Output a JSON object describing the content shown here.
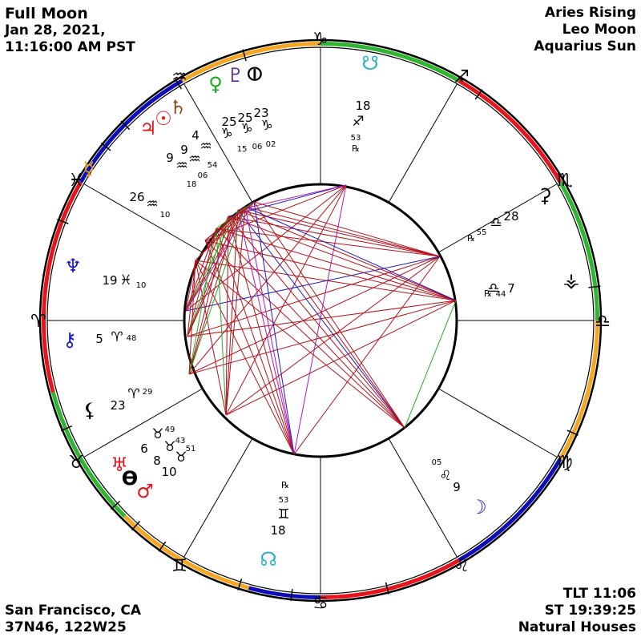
{
  "header": {
    "title": "Full Moon",
    "date": "Jan 28, 2021,",
    "time": "11:16:00 AM PST",
    "rising": "Aries Rising",
    "moon_sign": "Leo Moon",
    "sun_sign": "Aquarius Sun"
  },
  "footer": {
    "location": "San Francisco, CA",
    "coords": "37N46, 122W25",
    "tlt": "TLT 11:06",
    "st": "ST 19:39:25",
    "house_system": "Natural Houses"
  },
  "colors": {
    "fire": "#e8141b",
    "earth": "#2fb52f",
    "air": "#f5a623",
    "water": "#0d0db8",
    "aspect_red": "#b5121b",
    "aspect_blue": "#1a1ac8",
    "aspect_green": "#2aa82a",
    "aspect_magenta": "#b31ab3",
    "glyph_node": "#29b1c4",
    "glyph_venus": "#1aa81a",
    "glyph_purple": "#5a2d91",
    "glyph_saturn": "#8b4513",
    "glyph_red": "#e8141b",
    "glyph_mercury": "#e89c00",
    "glyph_blue": "#1a1ac8"
  },
  "zodiac_signs": [
    "♈",
    "♉",
    "♊",
    "♋",
    "♌",
    "♍",
    "♎",
    "♏",
    "♐",
    "♑",
    "♒",
    "♓"
  ],
  "planets": [
    {
      "name": "Venus",
      "glyph": "♀",
      "color_key": "glyph_venus",
      "degree": "25",
      "sign": "♑",
      "minute": "15"
    },
    {
      "name": "Pluto",
      "glyph": "♇",
      "color_key": "glyph_purple",
      "degree": "25",
      "sign": "♑",
      "minute": "06"
    },
    {
      "name": "Part of Fortune",
      "glyph": "⦶",
      "color_key": "glyph_black",
      "degree": "23",
      "sign": "♑",
      "minute": "02"
    },
    {
      "name": "Saturn",
      "glyph": "♄",
      "color_key": "glyph_saturn",
      "degree": "4",
      "sign": "♒",
      "minute": "54"
    },
    {
      "name": "Sun",
      "glyph": "☉",
      "color_key": "glyph_red",
      "degree": "9",
      "sign": "♒",
      "minute": "06"
    },
    {
      "name": "Jupiter",
      "glyph": "♃",
      "color_key": "glyph_red",
      "degree": "9",
      "sign": "♒",
      "minute": "18"
    },
    {
      "name": "Mercury",
      "glyph": "☿",
      "color_key": "glyph_mercury",
      "degree": "26",
      "sign": "♒",
      "minute": "10"
    },
    {
      "name": "Neptune",
      "glyph": "♆",
      "color_key": "glyph_blue",
      "degree": "19",
      "sign": "♓",
      "minute": "10"
    },
    {
      "name": "Chiron",
      "glyph": "⚷",
      "color_key": "glyph_blue",
      "degree": "5",
      "sign": "♈",
      "minute": "48"
    },
    {
      "name": "Lilith",
      "glyph": "⚸",
      "color_key": "glyph_black",
      "degree": "23",
      "sign": "♈",
      "minute": "29"
    },
    {
      "name": "Uranus",
      "glyph": "♅",
      "color_key": "glyph_red",
      "degree": "6",
      "sign": "♉",
      "minute": "49"
    },
    {
      "name": "Vertex",
      "glyph": "ϴ",
      "color_key": "glyph_black",
      "degree": "8",
      "sign": "♉",
      "minute": "43"
    },
    {
      "name": "Mars",
      "glyph": "♂",
      "color_key": "glyph_red",
      "degree": "10",
      "sign": "♉",
      "minute": "51"
    },
    {
      "name": "North Node",
      "glyph": "☊",
      "color_key": "glyph_node",
      "degree": "18",
      "sign": "♊",
      "minute": "53",
      "retro": "℞"
    },
    {
      "name": "Moon",
      "glyph": "☽",
      "color_key": "glyph_blue",
      "degree": "9",
      "sign": "♌",
      "minute": "05"
    },
    {
      "name": "Vesta",
      "glyph": "⚶",
      "color_key": "glyph_black",
      "degree": "7",
      "sign": "♎",
      "minute": "44",
      "retro": "℞"
    },
    {
      "name": "Ceres",
      "glyph": "⚳",
      "color_key": "glyph_black",
      "degree": "28",
      "sign": "♎",
      "minute": "55",
      "retro": "℞"
    },
    {
      "name": "South Node",
      "glyph": "☋",
      "color_key": "glyph_node",
      "degree": "18",
      "sign": "♐",
      "minute": "53",
      "retro": "℞"
    }
  ],
  "house_nodes": {
    "top": "☋",
    "bottom": "☊"
  }
}
